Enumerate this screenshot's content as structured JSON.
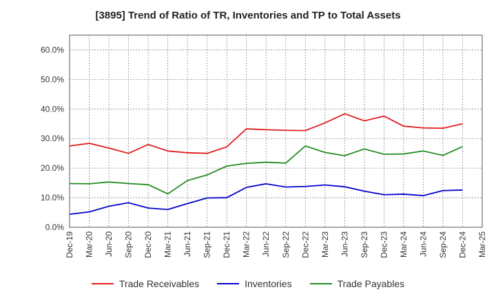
{
  "chart_data": {
    "type": "line",
    "title": "[3895]  Trend of Ratio of TR, Inventories and TP to Total Assets",
    "xlabel": "",
    "ylabel": "",
    "x_ticks": [
      "Dec-19",
      "Mar-20",
      "Jun-20",
      "Sep-20",
      "Dec-20",
      "Mar-21",
      "Jun-21",
      "Sep-21",
      "Dec-21",
      "Mar-22",
      "Jun-22",
      "Sep-22",
      "Dec-22",
      "Mar-23",
      "Jun-23",
      "Sep-23",
      "Dec-23",
      "Mar-24",
      "Jun-24",
      "Sep-24",
      "Dec-24",
      "Mar-25"
    ],
    "y_ticks": [
      "0.0%",
      "10.0%",
      "20.0%",
      "30.0%",
      "40.0%",
      "50.0%",
      "60.0%"
    ],
    "ylim": [
      0,
      60
    ],
    "grid": true,
    "legend_position": "bottom",
    "categories": [
      "Dec-19",
      "Mar-20",
      "Jun-20",
      "Sep-20",
      "Dec-20",
      "Mar-21",
      "Jun-21",
      "Sep-21",
      "Dec-21",
      "Mar-22",
      "Jun-22",
      "Sep-22",
      "Dec-22",
      "Mar-23",
      "Jun-23",
      "Sep-23",
      "Dec-23",
      "Mar-24",
      "Jun-24",
      "Sep-24",
      "Dec-24"
    ],
    "series": [
      {
        "name": "Trade Receivables",
        "color": "#e31a1c",
        "values": [
          27.5,
          28.4,
          26.8,
          25.0,
          28.0,
          25.8,
          25.2,
          25.0,
          27.2,
          33.3,
          33.0,
          32.8,
          32.7,
          35.3,
          38.4,
          36.0,
          37.6,
          34.2,
          33.6,
          33.5,
          35.0
        ]
      },
      {
        "name": "Inventories",
        "color": "#0000cc",
        "values": [
          4.4,
          5.2,
          7.1,
          8.3,
          6.5,
          6.0,
          8.0,
          9.9,
          10.0,
          13.5,
          14.7,
          13.6,
          13.8,
          14.3,
          13.7,
          12.2,
          11.0,
          11.2,
          10.7,
          12.4,
          12.6
        ]
      },
      {
        "name": "Trade Payables",
        "color": "#228b22",
        "values": [
          14.8,
          14.7,
          15.3,
          14.8,
          14.4,
          11.3,
          15.8,
          17.7,
          20.7,
          21.6,
          22.0,
          21.7,
          27.5,
          25.3,
          24.2,
          26.5,
          24.7,
          24.8,
          25.8,
          24.3,
          27.3
        ]
      }
    ]
  }
}
